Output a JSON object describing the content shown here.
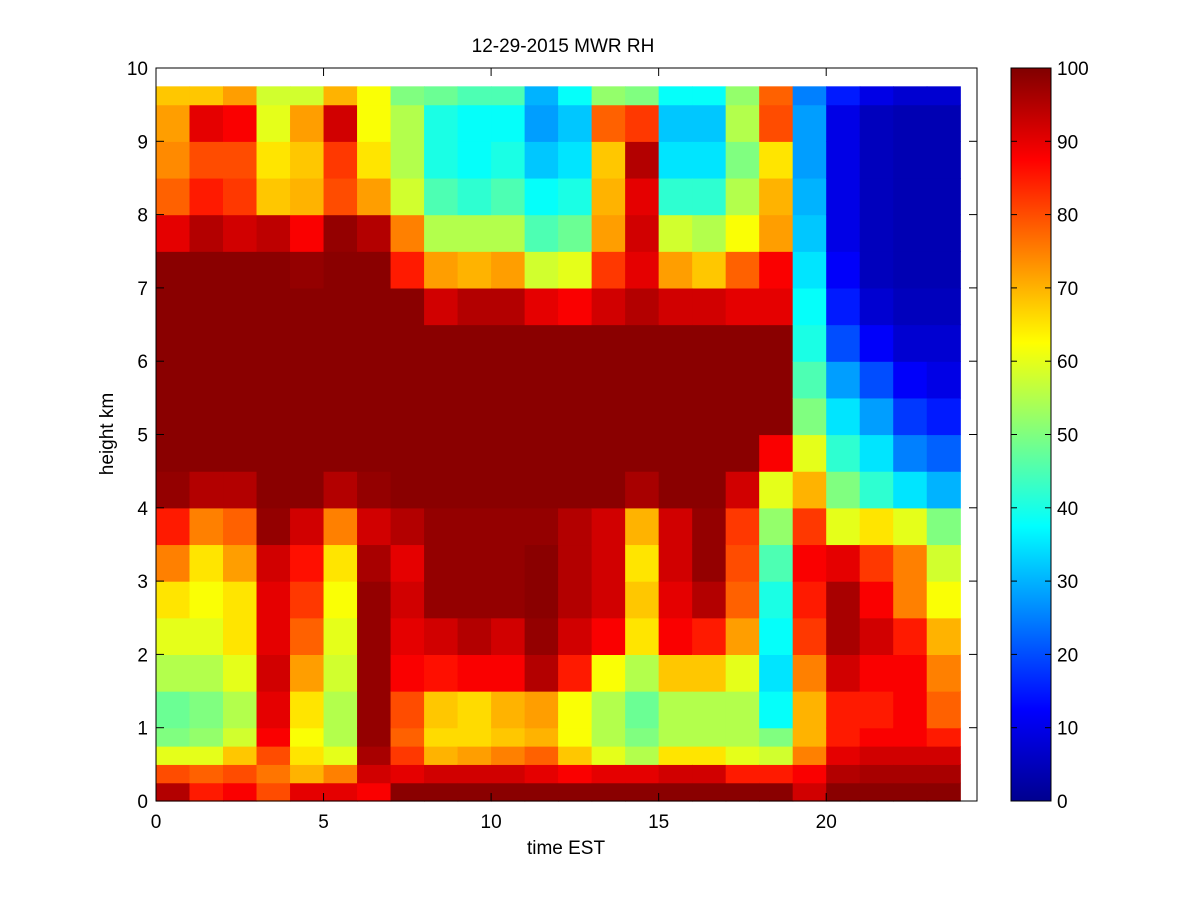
{
  "chart_data": {
    "type": "heatmap",
    "title": "12-29-2015 MWR RH",
    "xlabel": "time EST",
    "ylabel": "height km",
    "xlim": [
      0,
      24.5
    ],
    "ylim": [
      0,
      10
    ],
    "x_ticks": [
      "0",
      "5",
      "10",
      "15",
      "20"
    ],
    "x_tick_values": [
      0,
      5,
      10,
      15,
      20
    ],
    "y_ticks": [
      "0",
      "1",
      "2",
      "3",
      "4",
      "5",
      "6",
      "7",
      "8",
      "9",
      "10"
    ],
    "y_tick_values": [
      0,
      1,
      2,
      3,
      4,
      5,
      6,
      7,
      8,
      9,
      10
    ],
    "colorbar": {
      "range": [
        0,
        100
      ],
      "colormap": "jet",
      "ticks": [
        "0",
        "10",
        "20",
        "30",
        "40",
        "50",
        "60",
        "70",
        "80",
        "90",
        "100"
      ],
      "tick_values": [
        0,
        10,
        20,
        30,
        40,
        50,
        60,
        70,
        80,
        90,
        100
      ]
    },
    "grid": false,
    "time_columns": [
      0,
      1,
      2,
      3,
      4,
      5,
      6,
      7,
      8,
      9,
      10,
      11,
      12,
      13,
      14,
      15,
      16,
      17,
      18,
      19,
      20,
      21,
      22,
      23
    ],
    "column_width_hours": 1,
    "height_levels_km": [
      0.0,
      0.25,
      0.5,
      0.75,
      1.0,
      1.5,
      2.0,
      2.5,
      3.0,
      3.5,
      4.0,
      4.5,
      5.0,
      5.5,
      6.0,
      6.5,
      7.0,
      7.5,
      8.0,
      8.5,
      9.0,
      9.5,
      9.75
    ],
    "rh_profiles": [
      [
        95,
        80,
        60,
        50,
        48,
        55,
        60,
        65,
        75,
        85,
        98,
        99,
        99,
        99,
        99,
        99,
        99,
        90,
        78,
        74,
        72,
        68
      ],
      [
        85,
        78,
        60,
        52,
        50,
        55,
        60,
        62,
        65,
        75,
        95,
        99,
        99,
        99,
        99,
        99,
        99,
        95,
        85,
        80,
        90,
        68
      ],
      [
        88,
        80,
        68,
        58,
        55,
        60,
        65,
        65,
        72,
        78,
        95,
        99,
        99,
        99,
        99,
        99,
        99,
        92,
        82,
        80,
        88,
        72
      ],
      [
        80,
        76,
        80,
        88,
        90,
        92,
        90,
        90,
        92,
        98,
        99,
        99,
        99,
        99,
        99,
        99,
        99,
        94,
        68,
        65,
        60,
        58
      ],
      [
        90,
        70,
        65,
        62,
        65,
        72,
        78,
        82,
        86,
        92,
        99,
        99,
        99,
        99,
        99,
        99,
        98,
        88,
        70,
        68,
        72,
        58
      ],
      [
        90,
        75,
        60,
        55,
        55,
        58,
        60,
        62,
        65,
        75,
        95,
        99,
        99,
        99,
        99,
        99,
        99,
        98,
        80,
        82,
        92,
        70
      ],
      [
        88,
        92,
        96,
        98,
        98,
        98,
        98,
        98,
        96,
        92,
        98,
        99,
        99,
        99,
        99,
        99,
        99,
        95,
        72,
        65,
        62,
        62
      ],
      [
        99,
        90,
        82,
        78,
        80,
        88,
        90,
        92,
        90,
        95,
        99,
        99,
        99,
        99,
        99,
        99,
        85,
        75,
        58,
        55,
        55,
        50
      ],
      [
        99,
        92,
        70,
        66,
        68,
        86,
        92,
        98,
        98,
        98,
        99,
        99,
        99,
        99,
        99,
        92,
        72,
        55,
        45,
        40,
        40,
        48
      ],
      [
        99,
        92,
        72,
        66,
        66,
        88,
        95,
        98,
        98,
        98,
        99,
        99,
        99,
        99,
        99,
        95,
        70,
        55,
        42,
        38,
        38,
        45
      ],
      [
        99,
        92,
        75,
        68,
        70,
        88,
        92,
        98,
        98,
        98,
        99,
        99,
        99,
        99,
        99,
        95,
        72,
        55,
        45,
        40,
        38,
        45
      ],
      [
        99,
        90,
        78,
        70,
        72,
        95,
        98,
        99,
        99,
        98,
        99,
        99,
        99,
        99,
        99,
        90,
        58,
        45,
        38,
        32,
        28,
        30
      ],
      [
        99,
        88,
        68,
        62,
        62,
        85,
        92,
        95,
        95,
        95,
        99,
        99,
        99,
        99,
        99,
        88,
        60,
        48,
        40,
        35,
        32,
        38
      ],
      [
        99,
        90,
        60,
        55,
        55,
        62,
        88,
        92,
        92,
        92,
        99,
        99,
        99,
        99,
        99,
        92,
        82,
        72,
        70,
        68,
        78,
        52
      ],
      [
        99,
        90,
        55,
        50,
        48,
        55,
        65,
        68,
        65,
        70,
        96,
        99,
        99,
        99,
        99,
        95,
        90,
        92,
        90,
        95,
        82,
        50
      ],
      [
        99,
        92,
        65,
        55,
        55,
        68,
        88,
        90,
        92,
        92,
        99,
        99,
        99,
        99,
        99,
        92,
        72,
        58,
        42,
        35,
        32,
        38
      ],
      [
        99,
        92,
        65,
        55,
        55,
        68,
        85,
        95,
        98,
        98,
        99,
        99,
        99,
        99,
        99,
        92,
        68,
        55,
        42,
        35,
        32,
        38
      ],
      [
        99,
        85,
        60,
        55,
        55,
        60,
        72,
        78,
        80,
        82,
        92,
        99,
        99,
        99,
        99,
        90,
        78,
        62,
        55,
        50,
        55,
        52
      ],
      [
        99,
        85,
        58,
        50,
        38,
        35,
        38,
        40,
        45,
        52,
        60,
        88,
        99,
        99,
        99,
        90,
        88,
        72,
        70,
        65,
        80,
        78
      ],
      [
        92,
        88,
        75,
        70,
        70,
        75,
        82,
        85,
        88,
        82,
        70,
        60,
        50,
        45,
        40,
        38,
        35,
        32,
        30,
        28,
        28,
        25
      ],
      [
        99,
        95,
        90,
        85,
        85,
        92,
        96,
        96,
        90,
        60,
        50,
        42,
        35,
        28,
        20,
        15,
        12,
        10,
        10,
        10,
        10,
        15
      ],
      [
        99,
        96,
        92,
        88,
        85,
        88,
        92,
        88,
        82,
        65,
        42,
        35,
        28,
        20,
        12,
        8,
        6,
        6,
        6,
        6,
        6,
        10
      ],
      [
        99,
        96,
        92,
        88,
        88,
        88,
        85,
        75,
        75,
        60,
        35,
        25,
        18,
        12,
        8,
        6,
        5,
        5,
        5,
        5,
        5,
        8
      ],
      [
        99,
        96,
        92,
        85,
        78,
        75,
        70,
        62,
        58,
        50,
        30,
        22,
        15,
        10,
        8,
        6,
        5,
        5,
        5,
        5,
        5,
        8
      ]
    ]
  }
}
